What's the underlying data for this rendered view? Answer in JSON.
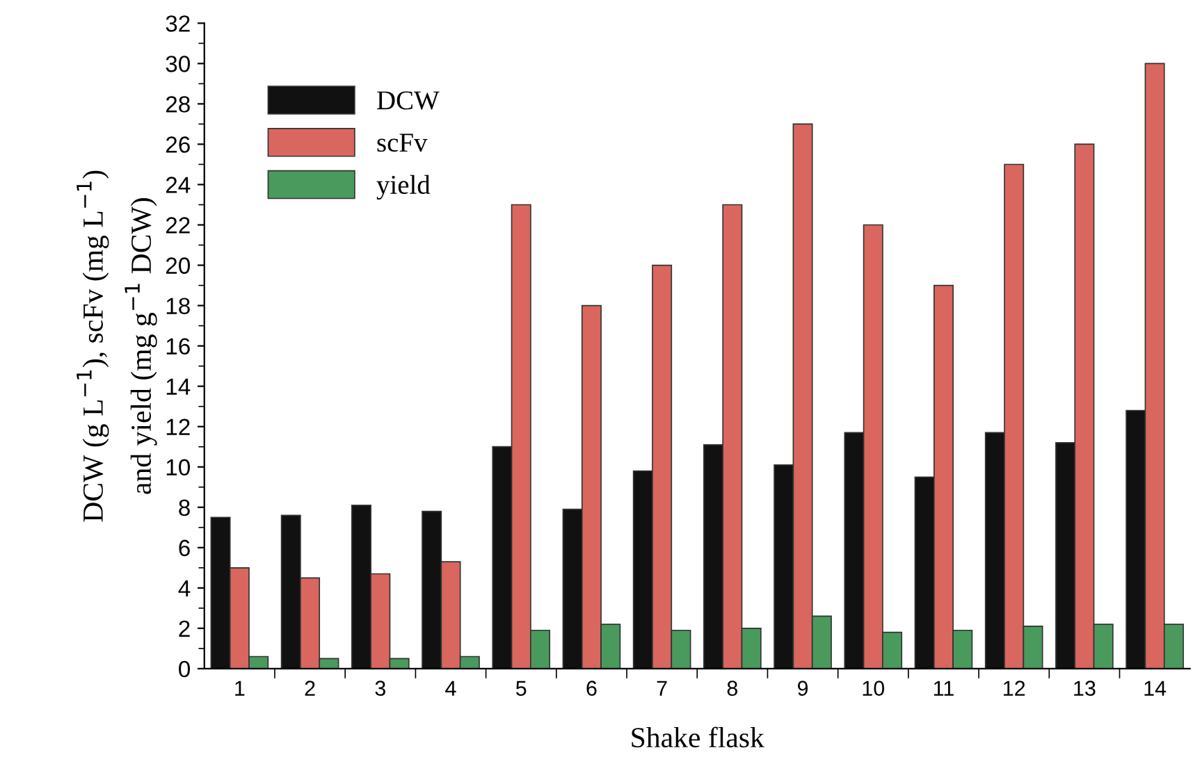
{
  "chart_data": {
    "type": "bar",
    "xlabel": "Shake flask",
    "ylabel": "DCW (g L$^{−1}$), scFv (mg L$^{−1}$)\nand yield (mg g$^{−1}$ DCW)",
    "categories": [
      "1",
      "2",
      "3",
      "4",
      "5",
      "6",
      "7",
      "8",
      "9",
      "10",
      "11",
      "12",
      "13",
      "14"
    ],
    "series": [
      {
        "name": "DCW",
        "color": "#111111",
        "values": [
          7.5,
          7.6,
          8.1,
          7.8,
          11.0,
          7.9,
          9.8,
          11.1,
          10.1,
          11.7,
          9.5,
          11.7,
          11.2,
          12.8
        ]
      },
      {
        "name": "scFv",
        "color": "#d9675f",
        "values": [
          5.0,
          4.5,
          4.7,
          5.3,
          23,
          18,
          20,
          23,
          27,
          22,
          19,
          25,
          26,
          30
        ]
      },
      {
        "name": "yield",
        "color": "#4a9a5e",
        "values": [
          0.6,
          0.5,
          0.5,
          0.6,
          1.9,
          2.2,
          1.9,
          2.0,
          2.6,
          1.8,
          1.9,
          2.1,
          2.2,
          2.2
        ]
      }
    ],
    "ylim": [
      0,
      32
    ],
    "yticks": [
      0,
      2,
      4,
      6,
      8,
      10,
      12,
      14,
      16,
      18,
      20,
      22,
      24,
      26,
      28,
      30,
      32
    ],
    "grid": false,
    "legend": "top left"
  }
}
